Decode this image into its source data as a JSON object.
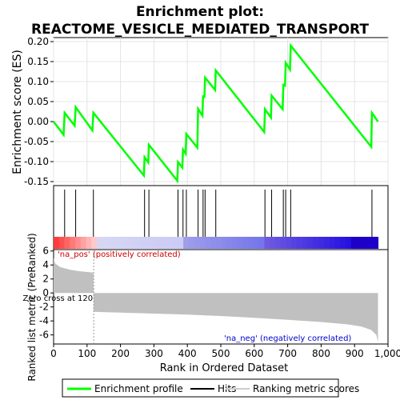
{
  "title_line1": "Enrichment plot:",
  "title_line2": "REACTOME_VESICLE_MEDIATED_TRANSPORT",
  "chart_data": {
    "type": "line",
    "es_panel": {
      "ylabel": "Enrichment score (ES)",
      "ylim": [
        -0.16,
        0.21
      ],
      "yticks": [
        -0.15,
        -0.1,
        -0.05,
        0.0,
        0.05,
        0.1,
        0.15,
        0.2
      ],
      "ytick_labels": [
        "-0.15",
        "-0.10",
        "-0.05",
        "0.00",
        "0.05",
        "0.10",
        "0.15",
        "0.20"
      ],
      "series_color": "#00ff00",
      "es_profile": [
        [
          0,
          0.0
        ],
        [
          30,
          -0.033
        ],
        [
          33,
          0.022
        ],
        [
          63,
          -0.01
        ],
        [
          66,
          0.036
        ],
        [
          116,
          -0.022
        ],
        [
          119,
          0.022
        ],
        [
          270,
          -0.135
        ],
        [
          272,
          -0.089
        ],
        [
          283,
          -0.102
        ],
        [
          285,
          -0.058
        ],
        [
          370,
          -0.148
        ],
        [
          372,
          -0.101
        ],
        [
          385,
          -0.115
        ],
        [
          387,
          -0.07
        ],
        [
          395,
          -0.08
        ],
        [
          397,
          -0.031
        ],
        [
          430,
          -0.065
        ],
        [
          432,
          0.032
        ],
        [
          445,
          0.015
        ],
        [
          447,
          0.063
        ],
        [
          451,
          0.062
        ],
        [
          453,
          0.11
        ],
        [
          483,
          0.079
        ],
        [
          485,
          0.128
        ],
        [
          630,
          -0.026
        ],
        [
          632,
          0.031
        ],
        [
          650,
          0.01
        ],
        [
          652,
          0.065
        ],
        [
          685,
          0.031
        ],
        [
          687,
          0.092
        ],
        [
          692,
          0.09
        ],
        [
          694,
          0.147
        ],
        [
          707,
          0.13
        ],
        [
          709,
          0.19
        ],
        [
          950,
          -0.063
        ],
        [
          952,
          0.022
        ],
        [
          970,
          0.0
        ]
      ]
    },
    "hits": [
      33,
      66,
      119,
      272,
      285,
      372,
      387,
      397,
      432,
      447,
      453,
      485,
      632,
      652,
      687,
      694,
      709,
      952
    ],
    "ranked_metric": {
      "ylabel": "Ranked list metric (PreRanked)",
      "ylim": [
        -7.3,
        6.2
      ],
      "yticks": [
        -6,
        -4,
        -2,
        0,
        2,
        4,
        6
      ],
      "ytick_labels": [
        "-6",
        "-4",
        "-2",
        "0",
        "2",
        "4",
        "6"
      ],
      "zero_cross": 120,
      "zero_cross_label": "Zero cross at 120",
      "pos_label": "'na_pos' (positively correlated)",
      "neg_label": "'na_neg' (negatively correlated)",
      "profile": [
        [
          0,
          5.0
        ],
        [
          5,
          4.2
        ],
        [
          20,
          3.7
        ],
        [
          50,
          3.3
        ],
        [
          80,
          3.1
        ],
        [
          119,
          2.9
        ],
        [
          120,
          -2.7
        ],
        [
          200,
          -2.8
        ],
        [
          300,
          -2.95
        ],
        [
          400,
          -3.1
        ],
        [
          500,
          -3.3
        ],
        [
          600,
          -3.55
        ],
        [
          700,
          -3.85
        ],
        [
          800,
          -4.15
        ],
        [
          880,
          -4.5
        ],
        [
          920,
          -4.8
        ],
        [
          950,
          -5.3
        ],
        [
          965,
          -6.0
        ],
        [
          970,
          -7.0
        ]
      ]
    },
    "xaxis": {
      "xlabel": "Rank in Ordered Dataset",
      "xlim": [
        0,
        1000
      ],
      "xticks": [
        0,
        100,
        200,
        300,
        400,
        500,
        600,
        700,
        800,
        900,
        1000
      ],
      "xtick_labels": [
        "0",
        "100",
        "200",
        "300",
        "400",
        "500",
        "600",
        "700",
        "800",
        "900",
        "1,000"
      ],
      "n_genes": 970
    },
    "legend": {
      "position": "bottom",
      "entries": [
        {
          "label": "Enrichment profile",
          "color": "#00ff00"
        },
        {
          "label": "Hits",
          "color": "#000000"
        },
        {
          "label": "Ranking metric scores",
          "color": "#cccccc"
        }
      ]
    }
  }
}
